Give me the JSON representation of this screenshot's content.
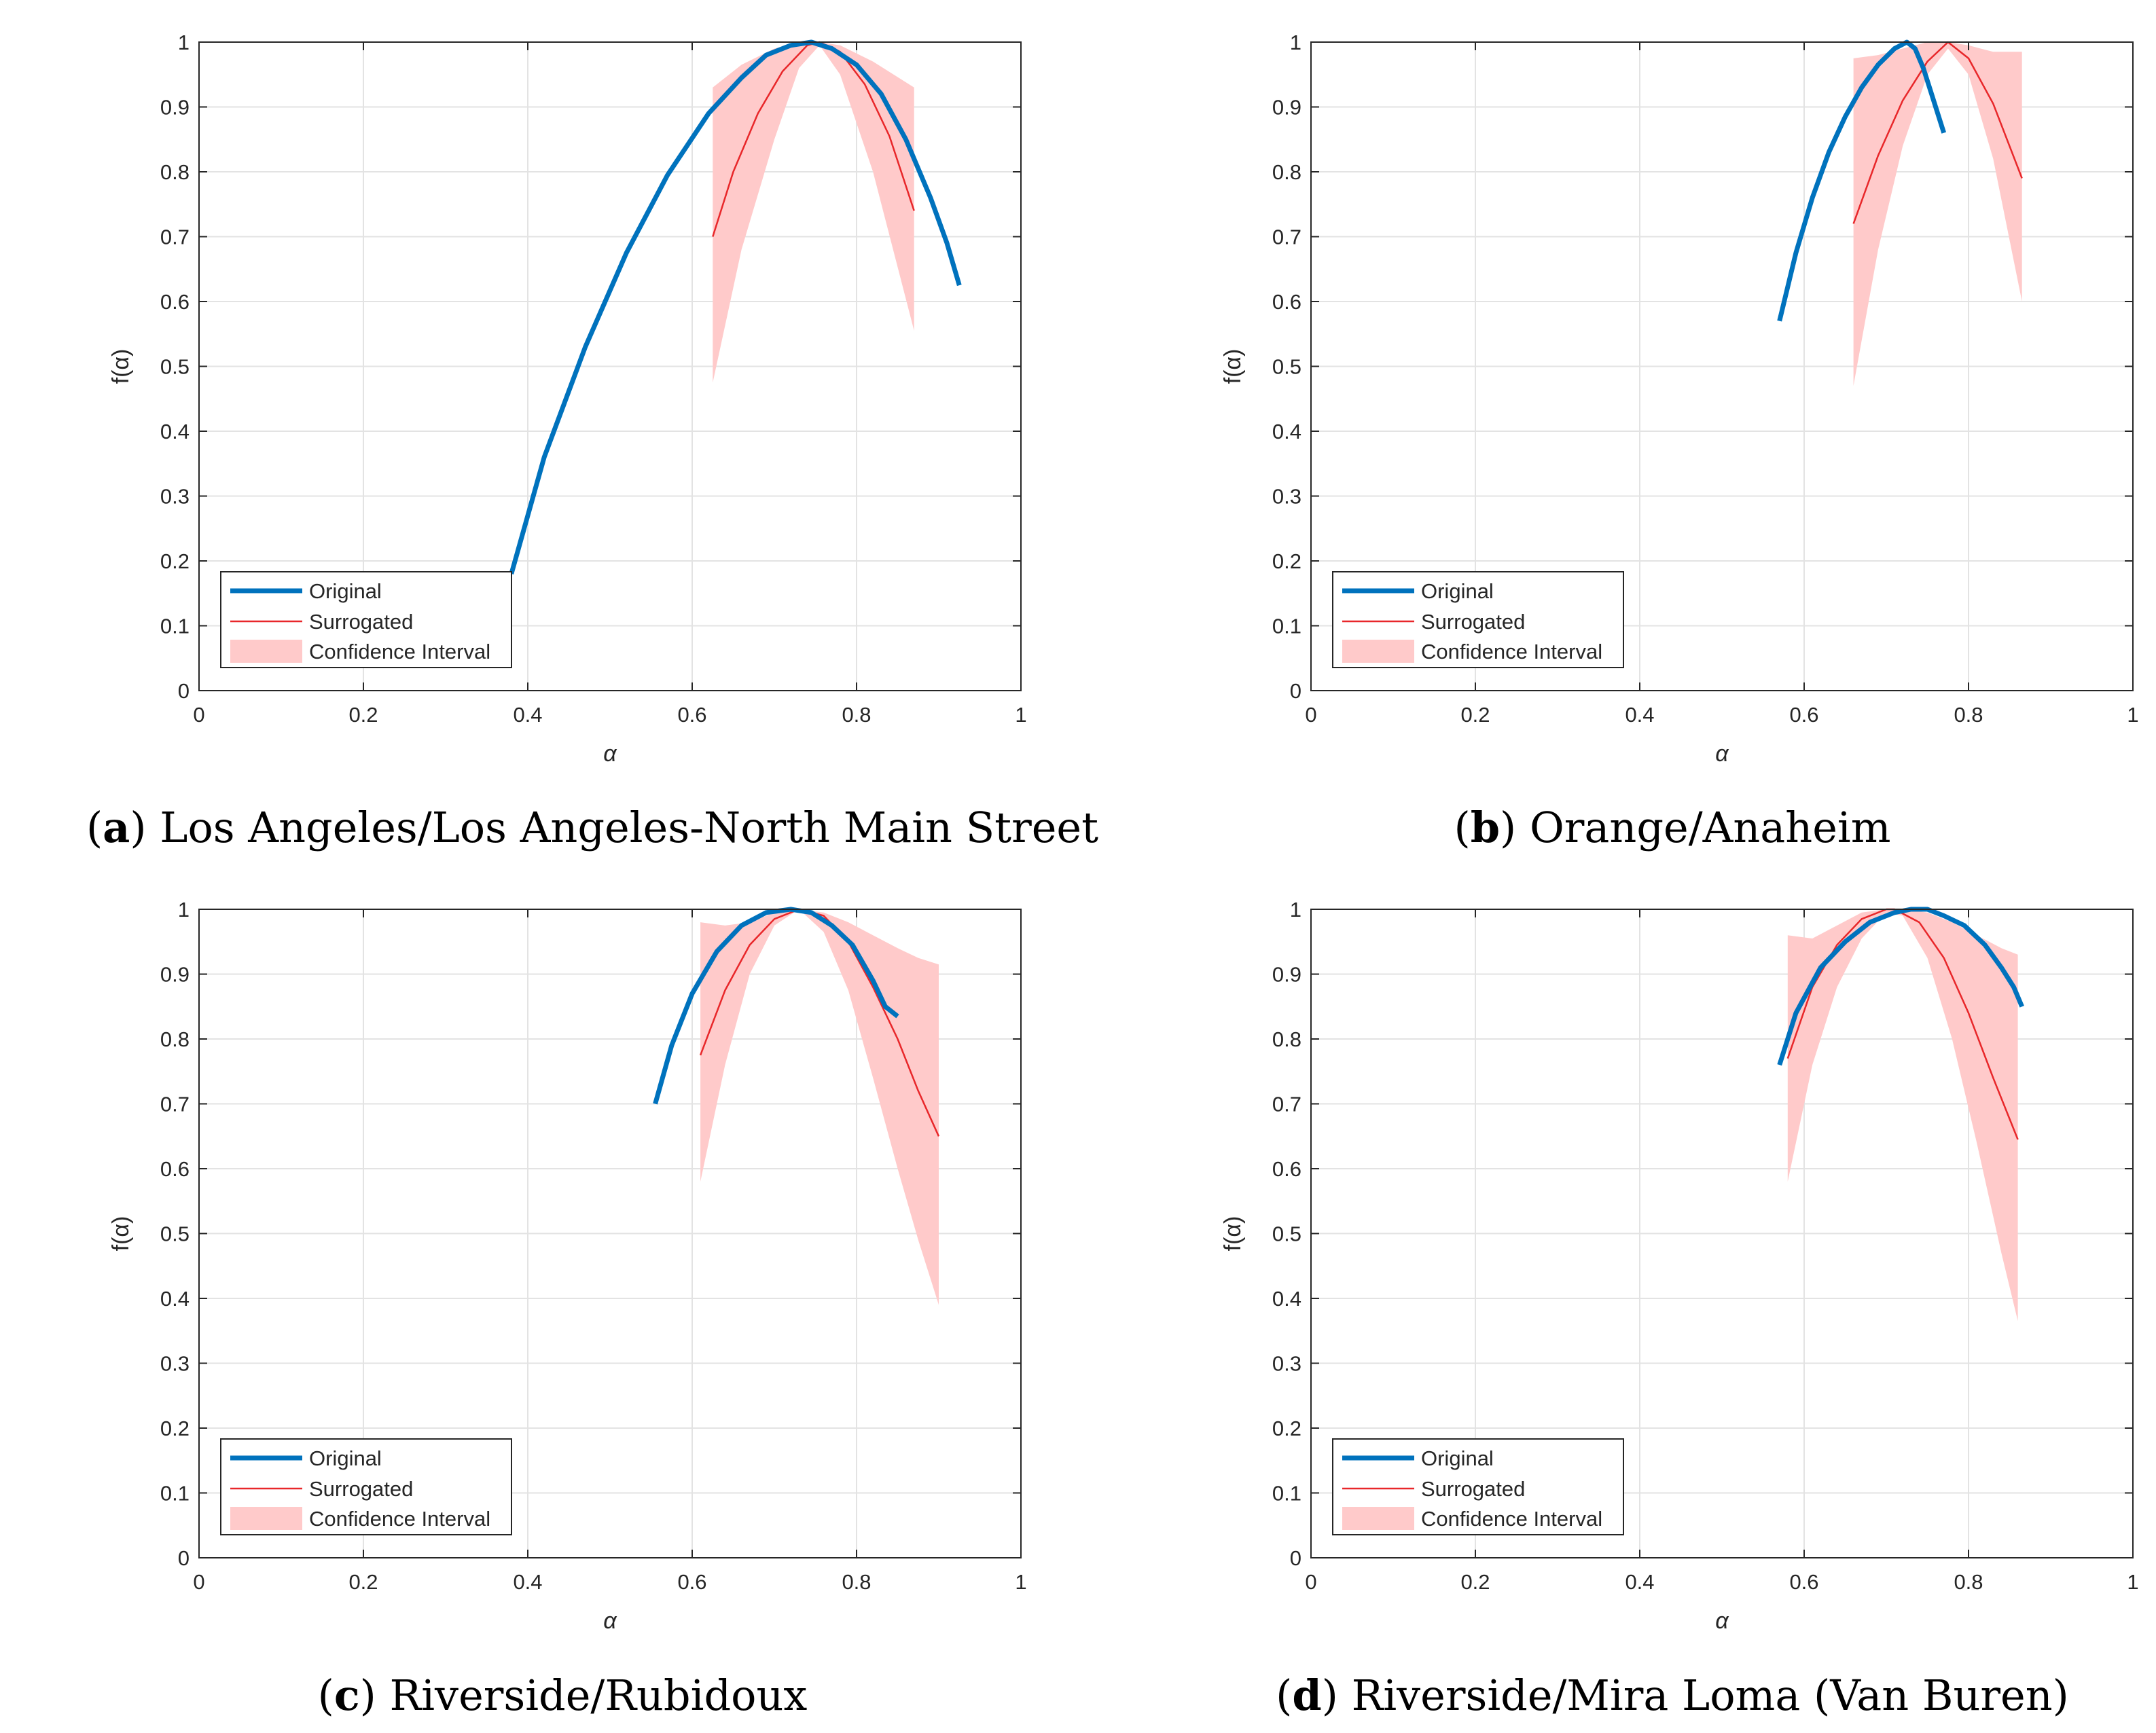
{
  "colors": {
    "original": "#0072BD",
    "surrogated": "#E8272A",
    "confidence": "#FFCACA",
    "grid": "#E3E3E3",
    "axis": "#262626"
  },
  "legend": {
    "entries": [
      "Original",
      "Surrogated",
      "Confidence Interval"
    ]
  },
  "chart_data": [
    {
      "type": "line",
      "panel": "a",
      "caption": {
        "open": "(",
        "letter": "a",
        "close": ")",
        "text": "Los Angeles/Los Angeles-North Main Street"
      },
      "xlabel": "α",
      "ylabel": "f(α)",
      "xlim": [
        0,
        1
      ],
      "ylim": [
        0,
        1
      ],
      "xticks": [
        0,
        0.2,
        0.4,
        0.6,
        0.8,
        1
      ],
      "xtick_labels": [
        "0",
        "0.2",
        "0.4",
        "0.6",
        "0.8",
        "1"
      ],
      "yticks": [
        0,
        0.1,
        0.2,
        0.3,
        0.4,
        0.5,
        0.6,
        0.7,
        0.8,
        0.9,
        1
      ],
      "ytick_labels": [
        "0",
        "0.1",
        "0.2",
        "0.3",
        "0.4",
        "0.5",
        "0.6",
        "0.7",
        "0.8",
        "0.9",
        "1"
      ],
      "grid": true,
      "legend_position": "bottom-left",
      "series": [
        {
          "name": "Original",
          "x": [
            0.38,
            0.42,
            0.47,
            0.52,
            0.57,
            0.62,
            0.66,
            0.69,
            0.72,
            0.745,
            0.77,
            0.8,
            0.83,
            0.86,
            0.89,
            0.91,
            0.925
          ],
          "y": [
            0.18,
            0.36,
            0.53,
            0.675,
            0.795,
            0.89,
            0.945,
            0.98,
            0.995,
            1.0,
            0.99,
            0.965,
            0.92,
            0.85,
            0.76,
            0.69,
            0.625
          ]
        },
        {
          "name": "Surrogated",
          "x": [
            0.625,
            0.65,
            0.68,
            0.71,
            0.74,
            0.755,
            0.78,
            0.81,
            0.84,
            0.87
          ],
          "y": [
            0.7,
            0.8,
            0.89,
            0.955,
            0.995,
            1.0,
            0.985,
            0.935,
            0.855,
            0.74
          ]
        },
        {
          "name": "Confidence Interval",
          "x": [
            0.625,
            0.66,
            0.7,
            0.73,
            0.755,
            0.78,
            0.82,
            0.87
          ],
          "lower": [
            0.475,
            0.68,
            0.85,
            0.96,
            0.995,
            0.95,
            0.8,
            0.555
          ],
          "upper": [
            0.93,
            0.965,
            0.99,
            1.0,
            1.0,
            0.995,
            0.97,
            0.93
          ]
        }
      ]
    },
    {
      "type": "line",
      "panel": "b",
      "caption": {
        "open": "(",
        "letter": "b",
        "close": ")",
        "text": "Orange/Anaheim"
      },
      "xlabel": "α",
      "ylabel": "f(α)",
      "xlim": [
        0,
        1
      ],
      "ylim": [
        0,
        1
      ],
      "xticks": [
        0,
        0.2,
        0.4,
        0.6,
        0.8,
        1
      ],
      "xtick_labels": [
        "0",
        "0.2",
        "0.4",
        "0.6",
        "0.8",
        "1"
      ],
      "yticks": [
        0,
        0.1,
        0.2,
        0.3,
        0.4,
        0.5,
        0.6,
        0.7,
        0.8,
        0.9,
        1
      ],
      "ytick_labels": [
        "0",
        "0.1",
        "0.2",
        "0.3",
        "0.4",
        "0.5",
        "0.6",
        "0.7",
        "0.8",
        "0.9",
        "1"
      ],
      "grid": true,
      "legend_position": "bottom-left",
      "series": [
        {
          "name": "Original",
          "x": [
            0.57,
            0.59,
            0.61,
            0.63,
            0.65,
            0.67,
            0.69,
            0.71,
            0.725,
            0.735,
            0.745,
            0.755,
            0.77
          ],
          "y": [
            0.57,
            0.675,
            0.76,
            0.83,
            0.885,
            0.93,
            0.965,
            0.99,
            1.0,
            0.99,
            0.96,
            0.92,
            0.86
          ]
        },
        {
          "name": "Surrogated",
          "x": [
            0.66,
            0.69,
            0.72,
            0.75,
            0.775,
            0.8,
            0.83,
            0.865
          ],
          "y": [
            0.72,
            0.825,
            0.91,
            0.97,
            1.0,
            0.975,
            0.905,
            0.79
          ]
        },
        {
          "name": "Confidence Interval",
          "x": [
            0.66,
            0.69,
            0.72,
            0.75,
            0.775,
            0.8,
            0.83,
            0.865
          ],
          "lower": [
            0.47,
            0.68,
            0.84,
            0.95,
            0.99,
            0.95,
            0.82,
            0.6
          ],
          "upper": [
            0.975,
            0.98,
            0.99,
            1.0,
            1.0,
            0.995,
            0.985,
            0.985
          ]
        }
      ]
    },
    {
      "type": "line",
      "panel": "c",
      "caption": {
        "open": "(",
        "letter": "c",
        "close": ")",
        "text": "Riverside/Rubidoux"
      },
      "xlabel": "α",
      "ylabel": "f(α)",
      "xlim": [
        0,
        1
      ],
      "ylim": [
        0,
        1
      ],
      "xticks": [
        0,
        0.2,
        0.4,
        0.6,
        0.8,
        1
      ],
      "xtick_labels": [
        "0",
        "0.2",
        "0.4",
        "0.6",
        "0.8",
        "1"
      ],
      "yticks": [
        0,
        0.1,
        0.2,
        0.3,
        0.4,
        0.5,
        0.6,
        0.7,
        0.8,
        0.9,
        1
      ],
      "ytick_labels": [
        "0",
        "0.1",
        "0.2",
        "0.3",
        "0.4",
        "0.5",
        "0.6",
        "0.7",
        "0.8",
        "0.9",
        "1"
      ],
      "grid": true,
      "legend_position": "bottom-left",
      "series": [
        {
          "name": "Original",
          "x": [
            0.555,
            0.575,
            0.6,
            0.63,
            0.66,
            0.69,
            0.72,
            0.745,
            0.77,
            0.795,
            0.82,
            0.835,
            0.85
          ],
          "y": [
            0.7,
            0.79,
            0.87,
            0.935,
            0.975,
            0.995,
            1.0,
            0.995,
            0.975,
            0.945,
            0.89,
            0.85,
            0.835
          ]
        },
        {
          "name": "Surrogated",
          "x": [
            0.61,
            0.64,
            0.67,
            0.7,
            0.73,
            0.76,
            0.79,
            0.82,
            0.85,
            0.875,
            0.9
          ],
          "y": [
            0.775,
            0.875,
            0.945,
            0.985,
            1.0,
            0.99,
            0.95,
            0.88,
            0.8,
            0.72,
            0.65
          ]
        },
        {
          "name": "Confidence Interval",
          "x": [
            0.61,
            0.64,
            0.67,
            0.7,
            0.73,
            0.76,
            0.79,
            0.82,
            0.85,
            0.875,
            0.9
          ],
          "lower": [
            0.58,
            0.76,
            0.9,
            0.975,
            1.0,
            0.965,
            0.875,
            0.74,
            0.6,
            0.49,
            0.39
          ],
          "upper": [
            0.98,
            0.975,
            0.98,
            0.995,
            1.0,
            0.995,
            0.98,
            0.96,
            0.94,
            0.925,
            0.915
          ]
        }
      ]
    },
    {
      "type": "line",
      "panel": "d",
      "caption": {
        "open": "(",
        "letter": "d",
        "close": ")",
        "text": "Riverside/Mira Loma (Van Buren)"
      },
      "xlabel": "α",
      "ylabel": "f(α)",
      "xlim": [
        0,
        1
      ],
      "ylim": [
        0,
        1
      ],
      "xticks": [
        0,
        0.2,
        0.4,
        0.6,
        0.8,
        1
      ],
      "xtick_labels": [
        "0",
        "0.2",
        "0.4",
        "0.6",
        "0.8",
        "1"
      ],
      "yticks": [
        0,
        0.1,
        0.2,
        0.3,
        0.4,
        0.5,
        0.6,
        0.7,
        0.8,
        0.9,
        1
      ],
      "ytick_labels": [
        "0",
        "0.1",
        "0.2",
        "0.3",
        "0.4",
        "0.5",
        "0.6",
        "0.7",
        "0.8",
        "0.9",
        "1"
      ],
      "grid": true,
      "legend_position": "bottom-left",
      "series": [
        {
          "name": "Original",
          "x": [
            0.57,
            0.59,
            0.62,
            0.65,
            0.68,
            0.71,
            0.73,
            0.75,
            0.77,
            0.795,
            0.82,
            0.84,
            0.855,
            0.865
          ],
          "y": [
            0.76,
            0.84,
            0.91,
            0.95,
            0.98,
            0.995,
            1.0,
            1.0,
            0.99,
            0.975,
            0.945,
            0.91,
            0.88,
            0.85
          ]
        },
        {
          "name": "Surrogated",
          "x": [
            0.58,
            0.61,
            0.64,
            0.67,
            0.7,
            0.71,
            0.74,
            0.77,
            0.8,
            0.83,
            0.86
          ],
          "y": [
            0.77,
            0.88,
            0.945,
            0.985,
            1.0,
            1.0,
            0.98,
            0.925,
            0.84,
            0.74,
            0.645
          ]
        },
        {
          "name": "Confidence Interval",
          "x": [
            0.58,
            0.61,
            0.64,
            0.67,
            0.7,
            0.72,
            0.75,
            0.78,
            0.81,
            0.84,
            0.86
          ],
          "lower": [
            0.58,
            0.76,
            0.88,
            0.955,
            0.995,
            0.99,
            0.925,
            0.8,
            0.64,
            0.47,
            0.365
          ],
          "upper": [
            0.96,
            0.955,
            0.975,
            0.995,
            1.0,
            1.0,
            0.995,
            0.98,
            0.96,
            0.94,
            0.93
          ]
        }
      ]
    }
  ]
}
